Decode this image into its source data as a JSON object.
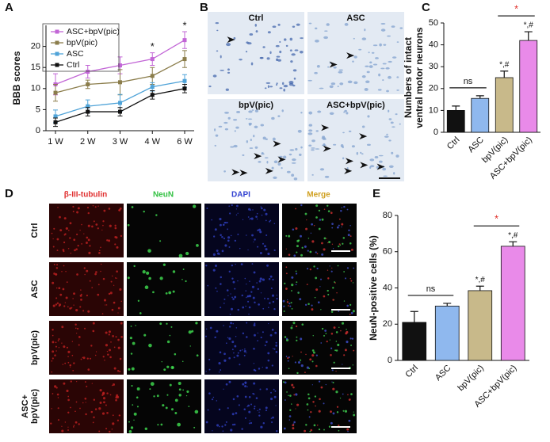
{
  "panel_labels": [
    "A",
    "B",
    "C",
    "D",
    "E"
  ],
  "chart_data": [
    {
      "type": "line",
      "ylabel": "BBB scores",
      "categories": [
        "1 W",
        "2 W",
        "3 W",
        "4 W",
        "6 W"
      ],
      "ylim": [
        0,
        25
      ],
      "yticks": [
        0,
        5,
        10,
        15,
        20
      ],
      "legend": "upper left",
      "series": [
        {
          "name": "ASC+bpV(pic)",
          "color": "#c266d6",
          "values": [
            11,
            14,
            15.5,
            17,
            21.5
          ],
          "errors": [
            2.5,
            1.5,
            2,
            1.5,
            2
          ]
        },
        {
          "name": "bpV(pic)",
          "color": "#8b7d4b",
          "values": [
            9,
            11,
            11.5,
            13,
            17
          ],
          "errors": [
            2,
            1,
            3,
            2,
            2
          ]
        },
        {
          "name": "ASC",
          "color": "#4fa3d8",
          "values": [
            3.4,
            5.8,
            6.6,
            10.4,
            11.8
          ],
          "errors": [
            1.5,
            1.5,
            2,
            1,
            1.5
          ]
        },
        {
          "name": "Ctrl",
          "color": "#111111",
          "values": [
            2,
            4.5,
            4.5,
            8.5,
            10
          ],
          "errors": [
            1,
            1,
            1,
            1,
            1
          ]
        }
      ],
      "annotations": [
        "*",
        "*"
      ]
    },
    {
      "type": "bar",
      "ylabel": [
        "Numbers of intact",
        "ventral motor neurons"
      ],
      "categories": [
        "Ctrl",
        "ASC",
        "bpV(pic)",
        "ASC+bpV(pic)"
      ],
      "values": [
        10,
        15.5,
        25,
        42
      ],
      "errors": [
        2,
        1.2,
        3,
        4
      ],
      "colors": [
        "#111111",
        "#8fb8ee",
        "#c8b98a",
        "#e98ae9"
      ],
      "ylim": [
        0,
        50
      ],
      "yticks": [
        0,
        10,
        20,
        30,
        40,
        50
      ],
      "annotations": [
        "ns",
        "*",
        "*,#",
        "*,#"
      ]
    },
    {
      "type": "bar",
      "ylabel": [
        "NeuN-positive cells (%)"
      ],
      "categories": [
        "Ctrl",
        "ASC",
        "bpV(pic)",
        "ASC+bpV(pic)"
      ],
      "values": [
        21,
        30,
        38.5,
        63
      ],
      "errors": [
        6,
        1.5,
        2.5,
        2.5
      ],
      "colors": [
        "#111111",
        "#8fb8ee",
        "#c8b98a",
        "#e98ae9"
      ],
      "ylim": [
        0,
        80
      ],
      "yticks": [
        0,
        20,
        40,
        60,
        80
      ],
      "annotations": [
        "ns",
        "*",
        "*,#",
        "*,#"
      ]
    }
  ],
  "panel_b": {
    "labels": [
      "Ctrl",
      "ASC",
      "bpV(pic)",
      "ASC+bpV(pic)"
    ]
  },
  "panel_d": {
    "columns": [
      "β-III-tubulin",
      "NeuN",
      "DAPI",
      "Merge"
    ],
    "rows": [
      [
        "Ctrl"
      ],
      [
        "ASC"
      ],
      [
        "bpV(pic)"
      ],
      [
        "ASC+",
        "bpV(pic)"
      ]
    ]
  }
}
